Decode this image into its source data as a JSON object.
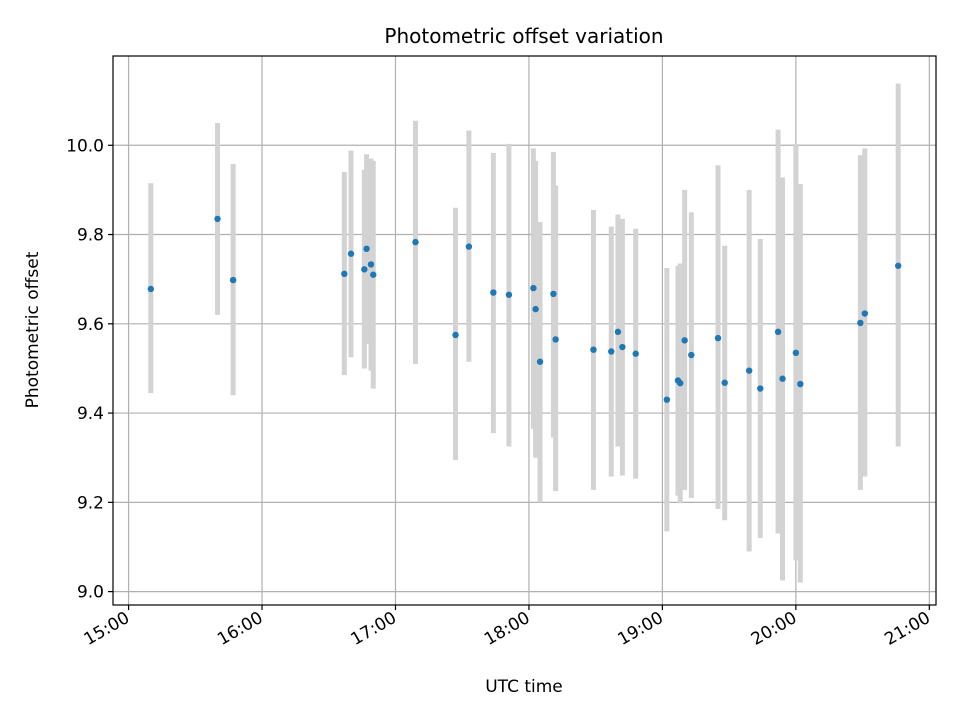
{
  "chart_data": {
    "type": "scatter",
    "title": "Photometric offset variation",
    "xlabel": "UTC time",
    "ylabel": "Photometric offset",
    "x_ticks": [
      "15:00",
      "16:00",
      "17:00",
      "18:00",
      "19:00",
      "20:00",
      "21:00"
    ],
    "y_ticks": [
      "9.0",
      "9.2",
      "9.4",
      "9.6",
      "9.8",
      "10.0"
    ],
    "xlim": [
      "14:53",
      "21:03"
    ],
    "ylim": [
      8.97,
      10.2
    ],
    "grid": true,
    "point_color": "#1f77b4",
    "errorbar_color": "#d3d3d3",
    "points": [
      {
        "x": "15:10",
        "y": 9.678,
        "lo": 9.445,
        "hi": 9.915
      },
      {
        "x": "15:40",
        "y": 9.835,
        "lo": 9.62,
        "hi": 10.05
      },
      {
        "x": "15:47",
        "y": 9.698,
        "lo": 9.44,
        "hi": 9.958
      },
      {
        "x": "16:37",
        "y": 9.712,
        "lo": 9.485,
        "hi": 9.94
      },
      {
        "x": "16:40",
        "y": 9.757,
        "lo": 9.525,
        "hi": 9.988
      },
      {
        "x": "16:46",
        "y": 9.722,
        "lo": 9.5,
        "hi": 9.945
      },
      {
        "x": "16:47",
        "y": 9.768,
        "lo": 9.555,
        "hi": 9.98
      },
      {
        "x": "16:49",
        "y": 9.733,
        "lo": 9.495,
        "hi": 9.97
      },
      {
        "x": "16:50",
        "y": 9.71,
        "lo": 9.455,
        "hi": 9.965
      },
      {
        "x": "17:09",
        "y": 9.783,
        "lo": 9.51,
        "hi": 10.055
      },
      {
        "x": "17:27",
        "y": 9.575,
        "lo": 9.295,
        "hi": 9.86
      },
      {
        "x": "17:33",
        "y": 9.773,
        "lo": 9.515,
        "hi": 10.033
      },
      {
        "x": "17:44",
        "y": 9.67,
        "lo": 9.355,
        "hi": 9.983
      },
      {
        "x": "17:51",
        "y": 9.665,
        "lo": 9.325,
        "hi": 10.003
      },
      {
        "x": "18:02",
        "y": 9.68,
        "lo": 9.365,
        "hi": 9.993
      },
      {
        "x": "18:03",
        "y": 9.633,
        "lo": 9.3,
        "hi": 9.965
      },
      {
        "x": "18:05",
        "y": 9.515,
        "lo": 9.2,
        "hi": 9.828
      },
      {
        "x": "18:11",
        "y": 9.667,
        "lo": 9.345,
        "hi": 9.985
      },
      {
        "x": "18:12",
        "y": 9.565,
        "lo": 9.225,
        "hi": 9.91
      },
      {
        "x": "18:29",
        "y": 9.542,
        "lo": 9.228,
        "hi": 9.855
      },
      {
        "x": "18:37",
        "y": 9.538,
        "lo": 9.258,
        "hi": 9.818
      },
      {
        "x": "18:40",
        "y": 9.582,
        "lo": 9.325,
        "hi": 9.845
      },
      {
        "x": "18:42",
        "y": 9.548,
        "lo": 9.26,
        "hi": 9.835
      },
      {
        "x": "18:48",
        "y": 9.533,
        "lo": 9.253,
        "hi": 9.813
      },
      {
        "x": "19:02",
        "y": 9.43,
        "lo": 9.135,
        "hi": 9.725
      },
      {
        "x": "19:07",
        "y": 9.473,
        "lo": 9.215,
        "hi": 9.73
      },
      {
        "x": "19:08",
        "y": 9.467,
        "lo": 9.198,
        "hi": 9.735
      },
      {
        "x": "19:10",
        "y": 9.563,
        "lo": 9.228,
        "hi": 9.9
      },
      {
        "x": "19:13",
        "y": 9.53,
        "lo": 9.21,
        "hi": 9.85
      },
      {
        "x": "19:25",
        "y": 9.568,
        "lo": 9.185,
        "hi": 9.955
      },
      {
        "x": "19:28",
        "y": 9.468,
        "lo": 9.16,
        "hi": 9.775
      },
      {
        "x": "19:39",
        "y": 9.495,
        "lo": 9.09,
        "hi": 9.9
      },
      {
        "x": "19:44",
        "y": 9.455,
        "lo": 9.12,
        "hi": 9.79
      },
      {
        "x": "19:52",
        "y": 9.582,
        "lo": 9.13,
        "hi": 10.035
      },
      {
        "x": "19:54",
        "y": 9.477,
        "lo": 9.025,
        "hi": 9.928
      },
      {
        "x": "20:00",
        "y": 9.535,
        "lo": 9.07,
        "hi": 10.003
      },
      {
        "x": "20:02",
        "y": 9.465,
        "lo": 9.02,
        "hi": 9.913
      },
      {
        "x": "20:29",
        "y": 9.602,
        "lo": 9.228,
        "hi": 9.978
      },
      {
        "x": "20:31",
        "y": 9.623,
        "lo": 9.258,
        "hi": 9.993
      },
      {
        "x": "20:46",
        "y": 9.73,
        "lo": 9.325,
        "hi": 10.138
      }
    ]
  }
}
